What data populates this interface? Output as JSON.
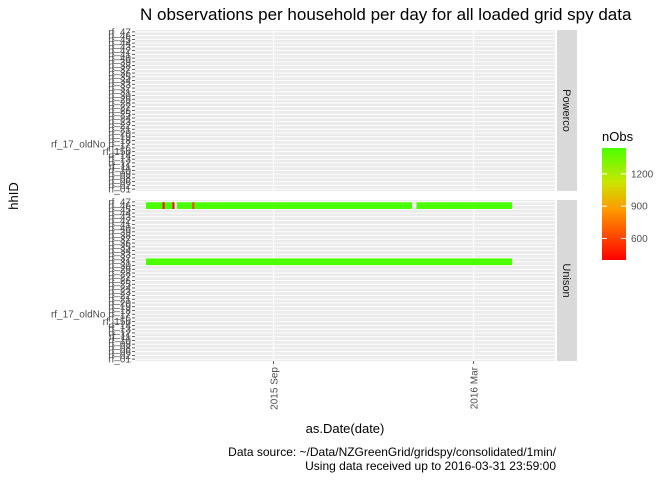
{
  "chart_data": {
    "type": "heatmap",
    "title": "N observations per household per day for all loaded grid spy data",
    "xlabel": "as.Date(date)",
    "ylabel": "hhID",
    "x_range": [
      "2015-04-28",
      "2016-05-14"
    ],
    "x_ticks": [
      {
        "date": "2015-09-01",
        "label": "2015 Sep"
      },
      {
        "date": "2016-03-01",
        "label": "2016 Mar"
      }
    ],
    "households": [
      "rf_01",
      "rf_02",
      "rf_06",
      "rf_08",
      "rf_09",
      "rf_10",
      "rf_11",
      "rf_12",
      "rf_13",
      "rf_14",
      "rf_15b",
      "rf_16",
      "rf_17_oldNo rf_17",
      "rf_18",
      "rf_19",
      "rf_20",
      "rf_21",
      "rf_22",
      "rf_23",
      "rf_24",
      "rf_25",
      "rf_26",
      "rf_27",
      "rf_28",
      "rf_29",
      "rf_30",
      "rf_31",
      "rf_32",
      "rf_33",
      "rf_34",
      "rf_35",
      "rf_36",
      "rf_37",
      "rf_38",
      "rf_39",
      "rf_40",
      "rf_41",
      "rf_42",
      "rf_43",
      "rf_44",
      "rf_45",
      "rf_46",
      "rf_47"
    ],
    "facets": [
      {
        "name": "Powerco",
        "rows": []
      },
      {
        "name": "Unison",
        "rows": [
          {
            "hhID": "rf_46",
            "segments": [
              {
                "start": "2015-05-08",
                "end": "2015-06-02",
                "nObs": 1440
              },
              {
                "start": "2015-06-05",
                "end": "2016-01-05",
                "nObs": 1440
              },
              {
                "start": "2016-01-09",
                "end": "2016-04-05",
                "nObs": 1440
              }
            ],
            "low_days": [
              {
                "date": "2015-05-24",
                "nObs": 420
              },
              {
                "date": "2015-06-02",
                "nObs": 380
              },
              {
                "date": "2015-06-20",
                "nObs": 600
              }
            ]
          },
          {
            "hhID": "rf_31",
            "segments": [
              {
                "start": "2015-05-08",
                "end": "2016-04-05",
                "nObs": 1440
              }
            ],
            "low_days": []
          }
        ]
      }
    ],
    "legend": {
      "title": "nObs",
      "placement": "right",
      "min": 400,
      "max": 1440,
      "breaks": [
        600,
        900,
        1200
      ],
      "color_low": "#ff0000",
      "color_high": "#4cff00"
    },
    "grid": true,
    "panel_background": "#ebebeb",
    "strip_background": "#d9d9d9"
  },
  "caption": [
    "Data source: ~/Data/NZGreenGrid/gridspy/consolidated/1min/",
    "Using data received up to 2016-03-31 23:59:00"
  ]
}
